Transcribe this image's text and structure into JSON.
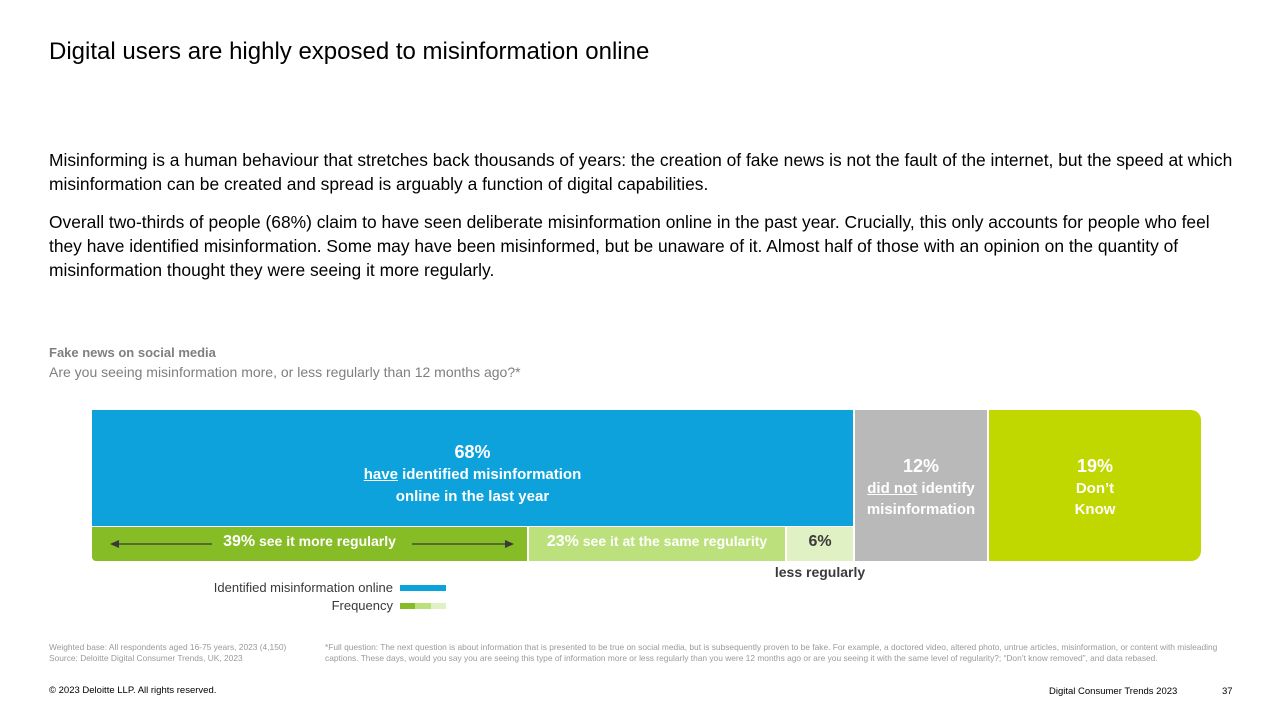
{
  "title": "Digital users are highly exposed to misinformation online",
  "paragraphs": [
    "Misinforming is a human behaviour that stretches back thousands of years: the creation of fake news is not the fault of the internet, but the speed at which misinformation can be created and spread is arguably a function of digital capabilities.",
    "Overall two-thirds of people (68%) claim to have seen deliberate misinformation online in the past year. Crucially, this only accounts for people who feel they have identified misinformation. Some may have been misinformed, but be unaware of it. Almost half of those with an opinion on the quantity of misinformation thought they were seeing it more regularly."
  ],
  "chart_heading": "Fake news on social media",
  "chart_question": "Are you seeing misinformation more, or less regularly than 12 months ago?*",
  "chart_data": {
    "type": "bar",
    "stacked": true,
    "orientation": "horizontal",
    "main_segments": [
      {
        "value": 68,
        "label_pct": "68%",
        "label_underlined": "have",
        "label_rest_1": " identified misinformation",
        "label_line_2": "online in the last year",
        "color": "#0da2dc"
      },
      {
        "value": 12,
        "label_pct": "12%",
        "label_underlined": "did not",
        "label_rest_1": " identify",
        "label_line_2": "misinformation",
        "color": "#b9b9b9"
      },
      {
        "value": 19,
        "label_pct": "19%",
        "label_line_1": "Don’t",
        "label_line_2": "Know",
        "color": "#c1d800"
      }
    ],
    "frequency_segments": [
      {
        "value": 39,
        "label_pct": "39%",
        "label_text": " see it more regularly",
        "color": "#86bc25"
      },
      {
        "value": 23,
        "label_pct": "23%",
        "label_text": " see it at the same regularity",
        "color": "#bce07c"
      },
      {
        "value": 6,
        "label_pct": "6%",
        "label_below": "less regularly",
        "color": "#e0f1c4"
      }
    ],
    "legend": [
      {
        "name": "Identified misinformation online",
        "color": "#0da2dc"
      },
      {
        "name": "Frequency",
        "colors": [
          "#86bc25",
          "#bce07c",
          "#e0f1c4"
        ]
      }
    ]
  },
  "footnotes": {
    "base": "Weighted base: All respondents aged 16-75 years, 2023 (4,150)",
    "source": "Source: Deloitte Digital Consumer Trends, UK, 2023",
    "full_question": "*Full question: The next question is about information that is presented to be true on social media, but is subsequently proven to be fake. For example, a doctored video, altered photo, untrue articles, misinformation, or content with misleading captions. These days, would you say you are seeing this type of information more or less regularly than you were 12 months ago or are you seeing it with the same level of regularity?; “Don’t know removed”, and data rebased."
  },
  "footer": {
    "copyright": "© 2023 Deloitte LLP. All rights reserved.",
    "report": "Digital Consumer Trends 2023",
    "page": "37"
  }
}
